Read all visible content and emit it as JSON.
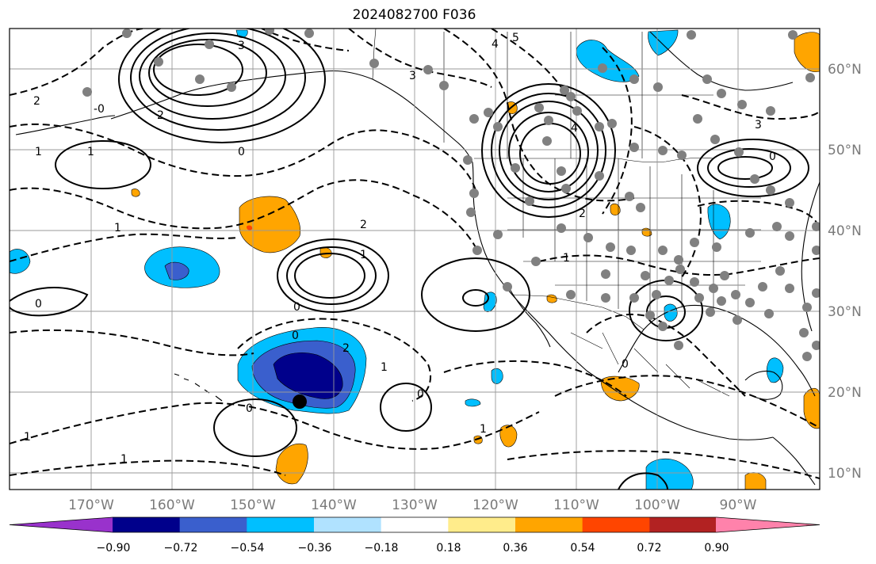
{
  "title": "2024082700 F036",
  "lat_labels": [
    "60°N",
    "50°N",
    "40°N",
    "30°N",
    "20°N",
    "10°N"
  ],
  "lon_labels": [
    "170°W",
    "160°W",
    "150°W",
    "140°W",
    "130°W",
    "120°W",
    "110°W",
    "100°W",
    "90°W"
  ],
  "colorbar": {
    "tick_labels": [
      "−0.90",
      "−0.72",
      "−0.54",
      "−0.36",
      "−0.18",
      "0.18",
      "0.36",
      "0.54",
      "0.72",
      "0.90"
    ],
    "colors": [
      "#9932cc",
      "#00008b",
      "#3a5fcd",
      "#00bfff",
      "#b0e2ff",
      "#ffffff",
      "#ffec8b",
      "#ffa500",
      "#ff4500",
      "#b22222",
      "#ff82ab"
    ]
  },
  "contour_labels": [
    "0",
    "1",
    "2",
    "3",
    "4",
    "5",
    "-0",
    "1",
    "2",
    "0",
    "1",
    "0",
    "1",
    "2",
    "0",
    "1",
    "0",
    "1",
    "2",
    "3",
    "4",
    "2",
    "0",
    "1",
    "0",
    "1",
    "3",
    "0",
    "1"
  ],
  "map": {
    "region": "North Pacific and North America",
    "land_color": "#ffffff",
    "grid_color": "#999999",
    "station_color": "#808080"
  }
}
